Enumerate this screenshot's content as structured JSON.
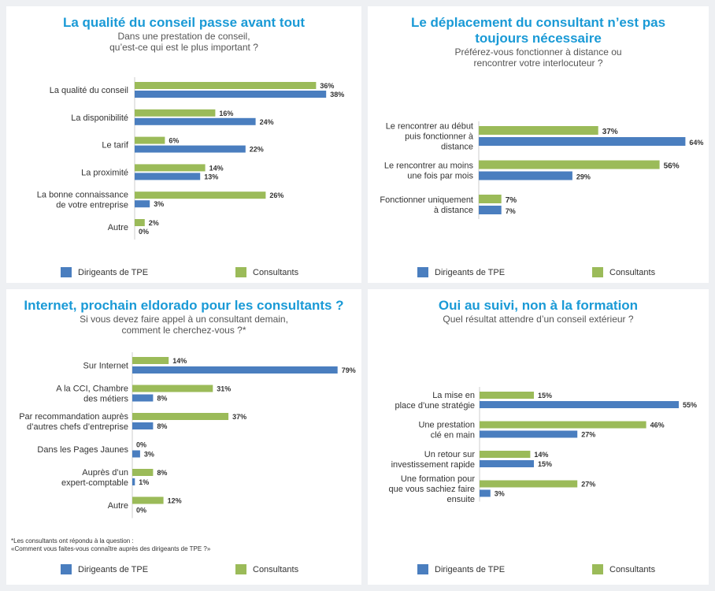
{
  "colors": {
    "tpe": "#4a7ebf",
    "consultants": "#9bbb59",
    "title": "#1a9ad6"
  },
  "legend": {
    "tpe": "Dirigeants de TPE",
    "consultants": "Consultants"
  },
  "footnote": [
    "*Les consultants ont répondu à la question :",
    "«Comment vous faites-vous connaître auprès des dirigeants de TPE ?»"
  ],
  "chart_data": [
    {
      "type": "bar",
      "title": "La qualité du conseil passe avant tout",
      "subtitle": [
        "Dans une prestation de conseil,",
        "qu’est-ce qui est le plus important ?"
      ],
      "categories": [
        [
          "La qualité du conseil"
        ],
        [
          "La disponibilité"
        ],
        [
          "Le tarif"
        ],
        [
          "La proximité"
        ],
        [
          "La bonne connaissance",
          "de votre entreprise"
        ],
        [
          "Autre"
        ]
      ],
      "series": [
        {
          "name": "Consultants",
          "values": [
            36,
            16,
            6,
            14,
            26,
            2
          ]
        },
        {
          "name": "Dirigeants de TPE",
          "values": [
            38,
            24,
            22,
            13,
            3,
            0
          ]
        }
      ]
    },
    {
      "type": "bar",
      "title": "Le déplacement du consultant n’est pas toujours nécessaire",
      "title_lines": [
        "Le déplacement du consultant n’est pas",
        "toujours nécessaire"
      ],
      "subtitle": [
        "Préférez-vous fonctionner à distance ou",
        "rencontrer votre interlocuteur ?"
      ],
      "categories": [
        [
          "Le rencontrer au début",
          "puis fonctionner à",
          "distance"
        ],
        [
          "Le rencontrer au moins",
          "une fois par mois"
        ],
        [
          "Fonctionner uniquement",
          "à distance"
        ]
      ],
      "series": [
        {
          "name": "Consultants",
          "values": [
            37,
            56,
            7
          ]
        },
        {
          "name": "Dirigeants de TPE",
          "values": [
            64,
            29,
            7
          ]
        }
      ]
    },
    {
      "type": "bar",
      "title": "Internet, prochain eldorado pour les consultants ?",
      "subtitle": [
        "Si vous devez faire appel à un consultant demain,",
        "comment le cherchez-vous ?*"
      ],
      "categories": [
        [
          "Sur Internet"
        ],
        [
          "A la CCI, Chambre",
          "des métiers"
        ],
        [
          "Par recommandation auprès",
          "d’autres chefs d’entreprise"
        ],
        [
          "Dans les Pages Jaunes"
        ],
        [
          "Auprès d’un",
          "expert-comptable"
        ],
        [
          "Autre"
        ]
      ],
      "series": [
        {
          "name": "Consultants",
          "values": [
            14,
            31,
            37,
            0,
            8,
            12
          ]
        },
        {
          "name": "Dirigeants de TPE",
          "values": [
            79,
            8,
            8,
            3,
            1,
            0
          ]
        }
      ]
    },
    {
      "type": "bar",
      "title": "Oui au suivi, non à la formation",
      "subtitle": [
        "Quel résultat attendre d’un conseil extérieur ?"
      ],
      "categories": [
        [
          "La mise en",
          "place d’une stratégie"
        ],
        [
          "Une prestation",
          "clé en main"
        ],
        [
          "Un retour sur",
          "investissement rapide"
        ],
        [
          "Une formation pour",
          "que vous sachiez faire",
          "ensuite"
        ]
      ],
      "series": [
        {
          "name": "Consultants",
          "values": [
            15,
            46,
            14,
            27
          ]
        },
        {
          "name": "Dirigeants de TPE",
          "values": [
            55,
            27,
            15,
            3
          ]
        }
      ]
    }
  ]
}
